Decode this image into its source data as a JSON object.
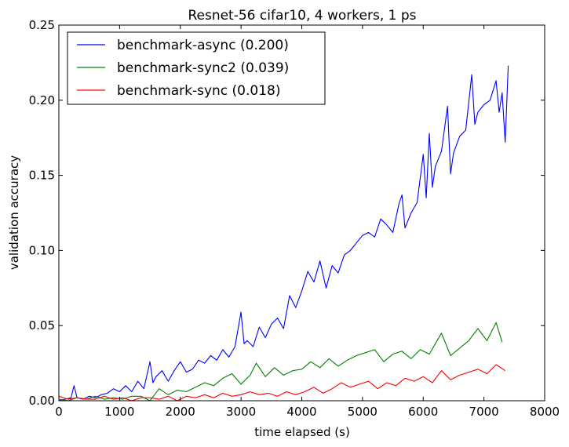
{
  "chart_data": {
    "type": "line",
    "title": "Resnet-56 cifar10, 4 workers, 1 ps",
    "xlabel": "time elapsed (s)",
    "ylabel": "validation accuracy",
    "xlim": [
      0,
      8000
    ],
    "ylim": [
      0,
      0.25
    ],
    "xticks": [
      "0",
      "1000",
      "2000",
      "3000",
      "4000",
      "5000",
      "6000",
      "7000",
      "8000"
    ],
    "yticks": [
      "0.00",
      "0.05",
      "0.10",
      "0.15",
      "0.20",
      "0.25"
    ],
    "xtick_values": [
      0,
      1000,
      2000,
      3000,
      4000,
      5000,
      6000,
      7000,
      8000
    ],
    "ytick_values": [
      0,
      0.05,
      0.1,
      0.15,
      0.2,
      0.25
    ],
    "grid": false,
    "legend_position": "top-left",
    "series": [
      {
        "name": "benchmark-async (0.200)",
        "color": "#0000ff",
        "x": [
          0,
          100,
          200,
          250,
          300,
          400,
          500,
          600,
          700,
          800,
          900,
          1000,
          1100,
          1200,
          1300,
          1400,
          1500,
          1550,
          1600,
          1700,
          1800,
          1900,
          2000,
          2100,
          2200,
          2300,
          2400,
          2500,
          2600,
          2700,
          2800,
          2900,
          3000,
          3050,
          3100,
          3200,
          3300,
          3400,
          3500,
          3600,
          3700,
          3800,
          3900,
          4000,
          4100,
          4200,
          4300,
          4400,
          4500,
          4600,
          4700,
          4800,
          4900,
          5000,
          5100,
          5200,
          5300,
          5400,
          5500,
          5600,
          5650,
          5700,
          5800,
          5900,
          6000,
          6050,
          6100,
          6150,
          6200,
          6300,
          6400,
          6450,
          6500,
          6600,
          6700,
          6800,
          6850,
          6900,
          7000,
          7100,
          7200,
          7250,
          7300,
          7350,
          7400
        ],
        "y": [
          0.0,
          0.001,
          0.002,
          0.01,
          0.002,
          0.001,
          0.003,
          0.002,
          0.004,
          0.005,
          0.008,
          0.006,
          0.01,
          0.006,
          0.013,
          0.008,
          0.026,
          0.012,
          0.016,
          0.02,
          0.013,
          0.02,
          0.026,
          0.019,
          0.021,
          0.027,
          0.025,
          0.03,
          0.027,
          0.034,
          0.029,
          0.036,
          0.059,
          0.038,
          0.04,
          0.036,
          0.049,
          0.042,
          0.051,
          0.055,
          0.048,
          0.07,
          0.062,
          0.073,
          0.086,
          0.079,
          0.093,
          0.075,
          0.09,
          0.085,
          0.097,
          0.1,
          0.105,
          0.11,
          0.112,
          0.109,
          0.121,
          0.117,
          0.112,
          0.131,
          0.137,
          0.115,
          0.125,
          0.132,
          0.164,
          0.135,
          0.178,
          0.142,
          0.156,
          0.166,
          0.196,
          0.151,
          0.165,
          0.176,
          0.18,
          0.217,
          0.184,
          0.192,
          0.197,
          0.2,
          0.213,
          0.192,
          0.205,
          0.172,
          0.223
        ]
      },
      {
        "name": "benchmark-sync2 (0.039)",
        "color": "#008000",
        "x": [
          0,
          150,
          300,
          450,
          600,
          750,
          900,
          1050,
          1200,
          1350,
          1500,
          1650,
          1800,
          1950,
          2100,
          2250,
          2400,
          2550,
          2700,
          2850,
          3000,
          3150,
          3250,
          3400,
          3550,
          3700,
          3850,
          4000,
          4150,
          4300,
          4450,
          4600,
          4750,
          4900,
          5050,
          5200,
          5350,
          5500,
          5650,
          5800,
          5950,
          6100,
          6300,
          6450,
          6600,
          6750,
          6900,
          7050,
          7200,
          7300
        ],
        "y": [
          0.001,
          0.0,
          0.002,
          0.001,
          0.003,
          0.001,
          0.002,
          0.001,
          0.003,
          0.003,
          0.0,
          0.008,
          0.004,
          0.007,
          0.006,
          0.009,
          0.012,
          0.01,
          0.015,
          0.018,
          0.011,
          0.017,
          0.025,
          0.016,
          0.022,
          0.017,
          0.02,
          0.021,
          0.026,
          0.022,
          0.028,
          0.023,
          0.027,
          0.03,
          0.032,
          0.034,
          0.026,
          0.031,
          0.033,
          0.028,
          0.034,
          0.031,
          0.045,
          0.03,
          0.035,
          0.04,
          0.048,
          0.04,
          0.052,
          0.039
        ]
      },
      {
        "name": "benchmark-sync (0.018)",
        "color": "#ff0000",
        "x": [
          0,
          150,
          300,
          450,
          600,
          750,
          900,
          1050,
          1200,
          1350,
          1500,
          1650,
          1800,
          1950,
          2100,
          2250,
          2400,
          2550,
          2700,
          2850,
          3000,
          3150,
          3300,
          3450,
          3600,
          3750,
          3900,
          4050,
          4200,
          4350,
          4500,
          4650,
          4800,
          4950,
          5100,
          5250,
          5400,
          5550,
          5700,
          5850,
          6000,
          6150,
          6300,
          6450,
          6600,
          6750,
          6900,
          7050,
          7200,
          7350
        ],
        "y": [
          0.003,
          0.001,
          0.002,
          0.001,
          0.001,
          0.003,
          0.001,
          0.002,
          0.0,
          0.002,
          0.002,
          0.001,
          0.003,
          0.0,
          0.003,
          0.002,
          0.004,
          0.002,
          0.005,
          0.003,
          0.004,
          0.006,
          0.004,
          0.005,
          0.003,
          0.006,
          0.004,
          0.006,
          0.009,
          0.005,
          0.008,
          0.012,
          0.009,
          0.011,
          0.013,
          0.008,
          0.012,
          0.01,
          0.015,
          0.013,
          0.016,
          0.012,
          0.02,
          0.014,
          0.017,
          0.019,
          0.021,
          0.018,
          0.024,
          0.02
        ]
      }
    ]
  }
}
